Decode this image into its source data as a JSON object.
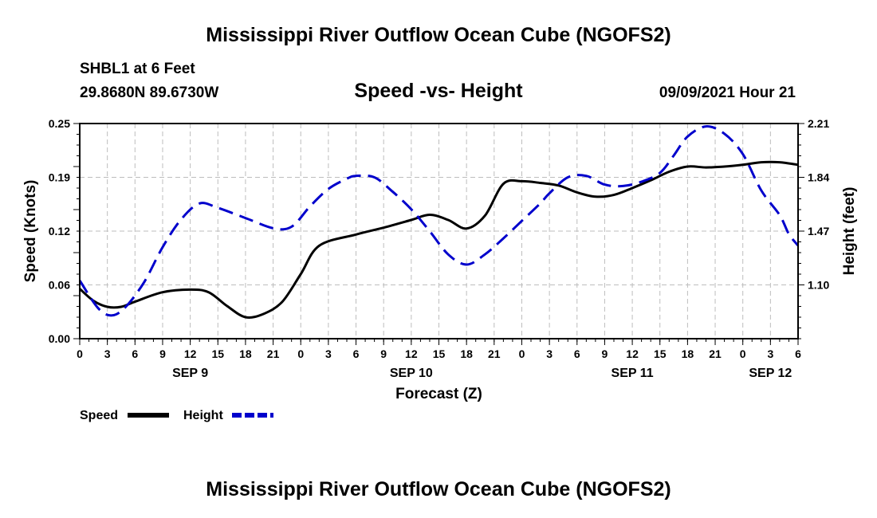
{
  "header": {
    "title": "Mississippi River Outflow Ocean Cube (NGOFS2)",
    "station": "SHBL1 at 6 Feet",
    "coords": "29.8680N  89.6730W",
    "subtitle": "Speed -vs- Height",
    "timestamp": "09/09/2021 Hour 21"
  },
  "footer": {
    "title": "Mississippi River Outflow Ocean Cube (NGOFS2)"
  },
  "chart_data": {
    "type": "line",
    "xlabel": "Forecast (Z)",
    "ylabel_left": "Speed (Knots)",
    "ylabel_right": "Height (feet)",
    "x_range_hours": [
      0,
      78
    ],
    "x_tick_step_hours": 3,
    "x_tick_labels": [
      "0",
      "3",
      "6",
      "9",
      "12",
      "15",
      "18",
      "21",
      "0",
      "3",
      "6",
      "9",
      "12",
      "15",
      "18",
      "21",
      "0",
      "3",
      "6",
      "9",
      "12",
      "15",
      "18",
      "21",
      "0",
      "3",
      "6"
    ],
    "date_labels": [
      {
        "hour": 12,
        "label": "SEP 9"
      },
      {
        "hour": 36,
        "label": "SEP 10"
      },
      {
        "hour": 60,
        "label": "SEP 11"
      },
      {
        "hour": 75,
        "label": "SEP 12"
      }
    ],
    "y_left": {
      "range": [
        0,
        0.25
      ],
      "ticks": [
        "0.00",
        "0.06",
        "0.12",
        "0.19",
        "0.25"
      ],
      "tick_values": [
        0,
        0.0625,
        0.125,
        0.1875,
        0.25
      ]
    },
    "y_right": {
      "range": [
        0.73,
        2.21
      ],
      "ticks": [
        "1.10",
        "1.47",
        "1.84",
        "2.21"
      ],
      "tick_values": [
        1.1,
        1.47,
        1.84,
        2.21
      ]
    },
    "grid": true,
    "legend_position": "bottom-left",
    "series": [
      {
        "name": "Speed",
        "axis": "left",
        "color": "#000000",
        "dash": "solid",
        "x": [
          0,
          1.5,
          3,
          4.5,
          6,
          9,
          12,
          14,
          16,
          18,
          20,
          22,
          24,
          26,
          30,
          33,
          36,
          38,
          40,
          42,
          44,
          46,
          48,
          50,
          52,
          54,
          56,
          58,
          60,
          62,
          64,
          66,
          68,
          70,
          72,
          74,
          76,
          78
        ],
        "values": [
          0.058,
          0.044,
          0.037,
          0.037,
          0.043,
          0.054,
          0.057,
          0.054,
          0.038,
          0.025,
          0.029,
          0.043,
          0.075,
          0.108,
          0.121,
          0.129,
          0.138,
          0.144,
          0.138,
          0.128,
          0.143,
          0.18,
          0.183,
          0.181,
          0.178,
          0.17,
          0.165,
          0.167,
          0.175,
          0.184,
          0.194,
          0.2,
          0.199,
          0.2,
          0.202,
          0.205,
          0.205,
          0.202
        ]
      },
      {
        "name": "Height",
        "axis": "right",
        "color": "#0000cc",
        "dash": "dashed",
        "x": [
          0,
          2,
          3.5,
          5,
          7,
          9,
          11,
          13,
          15,
          18,
          21,
          23,
          25,
          27,
          29,
          30,
          32,
          34,
          36,
          38,
          40,
          42,
          44,
          46,
          48,
          50,
          51,
          53,
          55,
          57,
          59,
          61,
          63,
          64.5,
          66,
          68,
          70,
          72,
          74,
          76,
          77,
          78
        ],
        "values": [
          1.13,
          0.94,
          0.89,
          0.95,
          1.12,
          1.36,
          1.55,
          1.66,
          1.63,
          1.56,
          1.49,
          1.5,
          1.64,
          1.76,
          1.83,
          1.85,
          1.84,
          1.74,
          1.62,
          1.47,
          1.31,
          1.24,
          1.31,
          1.42,
          1.54,
          1.66,
          1.73,
          1.84,
          1.85,
          1.79,
          1.78,
          1.81,
          1.87,
          1.99,
          2.12,
          2.19,
          2.14,
          2.0,
          1.75,
          1.58,
          1.45,
          1.37
        ]
      }
    ],
    "legend": [
      {
        "label": "Speed",
        "color": "#000000",
        "dash": "solid"
      },
      {
        "label": "Height",
        "color": "#0000cc",
        "dash": "dashed"
      }
    ]
  }
}
